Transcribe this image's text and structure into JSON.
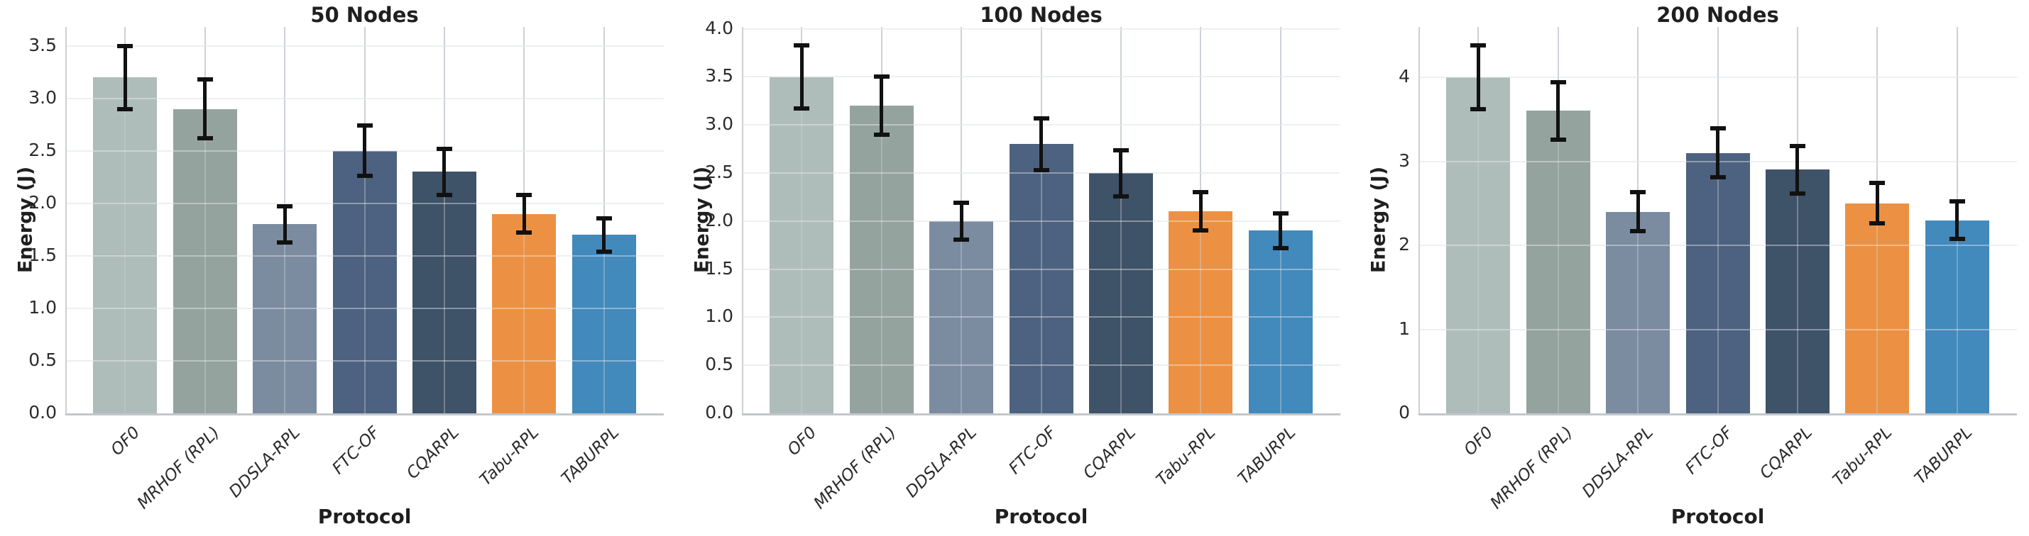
{
  "figure": {
    "background": "#ffffff",
    "panel_count": 3
  },
  "style": {
    "palette": [
      "#aebcba",
      "#95a39f",
      "#7b8ba0",
      "#4d6280",
      "#3e5268",
      "#ec9143",
      "#4289bc"
    ],
    "error_bar_color": "#111111",
    "grid_color_horizontal": "#e9ebec",
    "grid_color_vertical": "#ccd2d7",
    "spine_color": "#c8ccd0",
    "tick_text_color": "#2b2b2b",
    "title_text_color": "#1f1f1f"
  },
  "chart_data": [
    {
      "type": "bar",
      "title": "50 Nodes",
      "xlabel": "Protocol",
      "ylabel": "Energy (J)",
      "categories": [
        "OF0",
        "MRHOF (RPL)",
        "DDSLA-RPL",
        "FTC-OF",
        "CQARPL",
        "Tabu-RPL",
        "TABURPL"
      ],
      "values": [
        3.2,
        2.9,
        1.8,
        2.5,
        2.3,
        1.9,
        1.7
      ],
      "errors": [
        0.3,
        0.28,
        0.17,
        0.24,
        0.22,
        0.18,
        0.16
      ],
      "ytick_labels": [
        "0.0",
        "0.5",
        "1.0",
        "1.5",
        "2.0",
        "2.5",
        "3.0",
        "3.5"
      ],
      "ylim": [
        0,
        3.68
      ],
      "xlim_slots": [
        -0.75,
        6.75
      ],
      "grid": true,
      "legend": "none"
    },
    {
      "type": "bar",
      "title": "100 Nodes",
      "xlabel": "Protocol",
      "ylabel": "Energy (J)",
      "categories": [
        "OF0",
        "MRHOF (RPL)",
        "DDSLA-RPL",
        "FTC-OF",
        "CQARPL",
        "Tabu-RPL",
        "TABURPL"
      ],
      "values": [
        3.5,
        3.2,
        2.0,
        2.8,
        2.5,
        2.1,
        1.9
      ],
      "errors": [
        0.33,
        0.3,
        0.19,
        0.27,
        0.24,
        0.2,
        0.18
      ],
      "ytick_labels": [
        "0.0",
        "0.5",
        "1.0",
        "1.5",
        "2.0",
        "2.5",
        "3.0",
        "3.5",
        "4.0"
      ],
      "ylim": [
        0,
        4.02
      ],
      "xlim_slots": [
        -0.75,
        6.75
      ],
      "grid": true,
      "legend": "none"
    },
    {
      "type": "bar",
      "title": "200 Nodes",
      "xlabel": "Protocol",
      "ylabel": "Energy (J)",
      "categories": [
        "OF0",
        "MRHOF (RPL)",
        "DDSLA-RPL",
        "FTC-OF",
        "CQARPL",
        "Tabu-RPL",
        "TABURPL"
      ],
      "values": [
        4.0,
        3.6,
        2.4,
        3.1,
        2.9,
        2.5,
        2.3
      ],
      "errors": [
        0.38,
        0.34,
        0.23,
        0.29,
        0.28,
        0.24,
        0.22
      ],
      "ytick_labels": [
        "0",
        "1",
        "2",
        "3",
        "4"
      ],
      "ylim": [
        0,
        4.6
      ],
      "xlim_slots": [
        -0.75,
        6.75
      ],
      "grid": true,
      "legend": "none"
    }
  ]
}
